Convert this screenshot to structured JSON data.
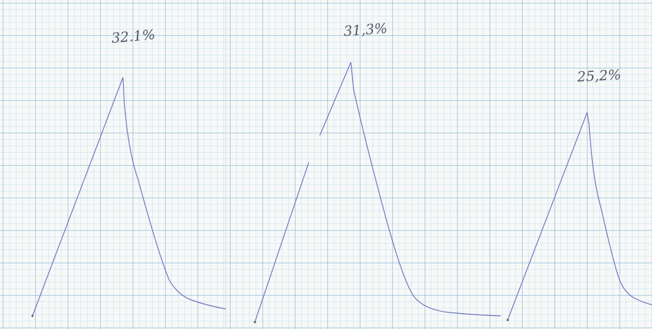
{
  "labels": [
    "32.1%",
    "31,3%",
    "25,2%"
  ]
}
